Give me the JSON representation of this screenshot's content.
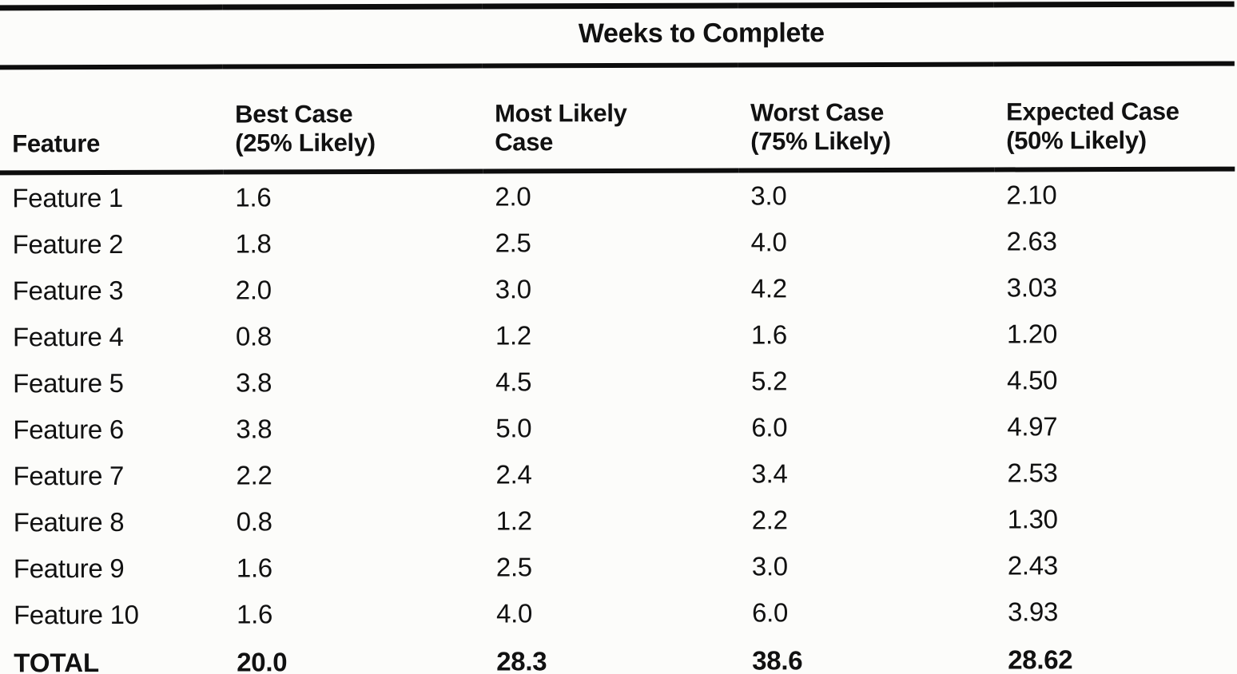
{
  "page": {
    "background_color": "#fcfcfa",
    "ink_color": "#111111"
  },
  "table": {
    "spanner": "Weeks to Complete",
    "columns": [
      {
        "line1": "Feature",
        "line2": ""
      },
      {
        "line1": "Best Case",
        "line2": "(25% Likely)"
      },
      {
        "line1": "Most Likely",
        "line2": "Case"
      },
      {
        "line1": "Worst Case",
        "line2": "(75% Likely)"
      },
      {
        "line1": "Expected Case",
        "line2": "(50% Likely)"
      }
    ],
    "rows": [
      {
        "feature": "Feature 1",
        "best": "1.6",
        "most_likely": "2.0",
        "worst": "3.0",
        "expected": "2.10"
      },
      {
        "feature": "Feature 2",
        "best": "1.8",
        "most_likely": "2.5",
        "worst": "4.0",
        "expected": "2.63"
      },
      {
        "feature": "Feature 3",
        "best": "2.0",
        "most_likely": "3.0",
        "worst": "4.2",
        "expected": "3.03"
      },
      {
        "feature": "Feature 4",
        "best": "0.8",
        "most_likely": "1.2",
        "worst": "1.6",
        "expected": "1.20"
      },
      {
        "feature": "Feature 5",
        "best": "3.8",
        "most_likely": "4.5",
        "worst": "5.2",
        "expected": "4.50"
      },
      {
        "feature": "Feature 6",
        "best": "3.8",
        "most_likely": "5.0",
        "worst": "6.0",
        "expected": "4.97"
      },
      {
        "feature": "Feature 7",
        "best": "2.2",
        "most_likely": "2.4",
        "worst": "3.4",
        "expected": "2.53"
      },
      {
        "feature": "Feature 8",
        "best": "0.8",
        "most_likely": "1.2",
        "worst": "2.2",
        "expected": "1.30"
      },
      {
        "feature": "Feature 9",
        "best": "1.6",
        "most_likely": "2.5",
        "worst": "3.0",
        "expected": "2.43"
      },
      {
        "feature": "Feature 10",
        "best": "1.6",
        "most_likely": "4.0",
        "worst": "6.0",
        "expected": "3.93"
      }
    ],
    "total": {
      "feature": "TOTAL",
      "best": "20.0",
      "most_likely": "28.3",
      "worst": "38.6",
      "expected": "28.62"
    }
  }
}
